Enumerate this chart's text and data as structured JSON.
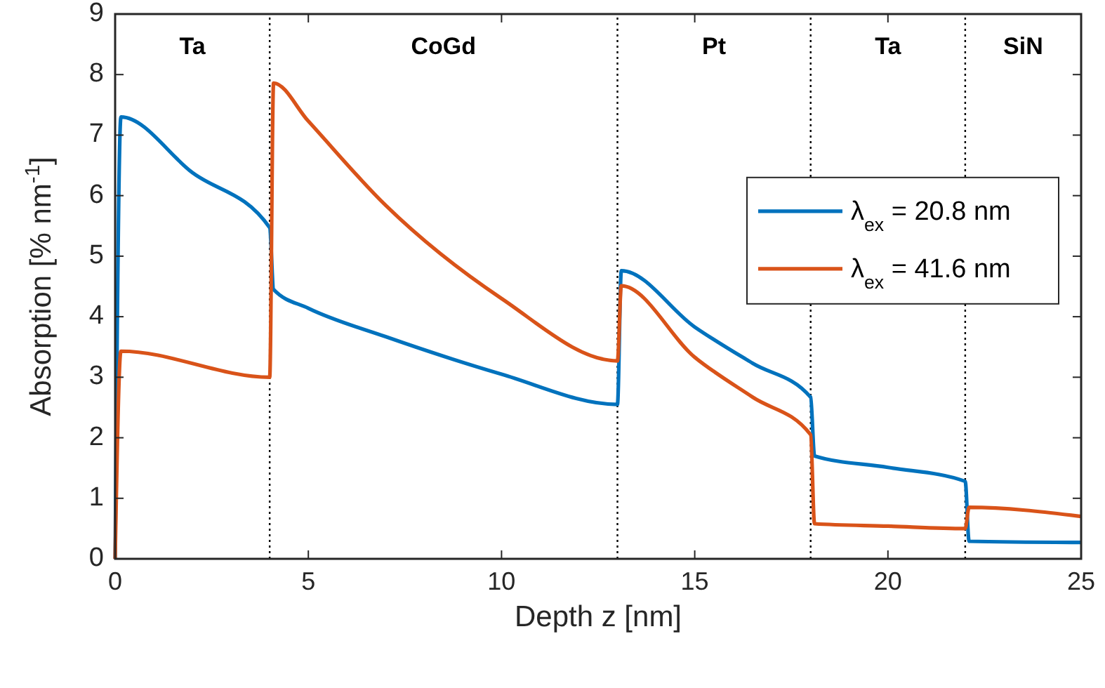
{
  "chart_data": {
    "type": "line",
    "xlabel": "Depth z [nm]",
    "ylabel": "Absorption [% nm$^{-1}$]",
    "xlim": [
      0,
      25
    ],
    "ylim": [
      0,
      9
    ],
    "xticks": [
      0,
      5,
      10,
      15,
      20,
      25
    ],
    "yticks": [
      0,
      1,
      2,
      3,
      4,
      5,
      6,
      7,
      8,
      9
    ],
    "legend": "top right",
    "grid": false,
    "series": [
      {
        "name": "λ$_{ex}$ = 20.8 nm",
        "color": "#0072bd",
        "x": [
          0,
          0.15,
          2,
          4,
          4.1,
          5,
          7,
          10,
          13,
          13.1,
          15,
          16.5,
          18,
          18.1,
          20,
          22,
          22.1,
          25
        ],
        "values": [
          0,
          7.3,
          6.38,
          5.47,
          4.45,
          4.14,
          3.67,
          3.05,
          2.55,
          4.76,
          3.83,
          3.23,
          2.67,
          1.7,
          1.51,
          1.28,
          0.29,
          0.27
        ]
      },
      {
        "name": "λ$_{ex}$ = 41.6 nm",
        "color": "#d95319",
        "x": [
          0,
          0.15,
          4,
          4.1,
          5,
          7,
          10,
          13,
          13.1,
          15,
          16.5,
          18,
          18.1,
          20,
          22,
          22.1,
          25
        ],
        "values": [
          0,
          3.43,
          3.0,
          7.86,
          7.23,
          5.84,
          4.3,
          3.27,
          4.51,
          3.33,
          2.67,
          2.05,
          0.58,
          0.54,
          0.5,
          0.85,
          0.7
        ]
      }
    ],
    "ref_lines": [
      {
        "axis": "x",
        "value": 4,
        "line_style": "dotted",
        "color": "#000000"
      },
      {
        "axis": "x",
        "value": 13,
        "line_style": "dotted",
        "color": "#000000"
      },
      {
        "axis": "x",
        "value": 18,
        "line_style": "dotted",
        "color": "#000000"
      },
      {
        "axis": "x",
        "value": 22,
        "line_style": "dotted",
        "color": "#000000"
      }
    ],
    "annotations": [
      "Ta",
      "CoGd",
      "Pt",
      "Ta",
      "SiN"
    ]
  }
}
